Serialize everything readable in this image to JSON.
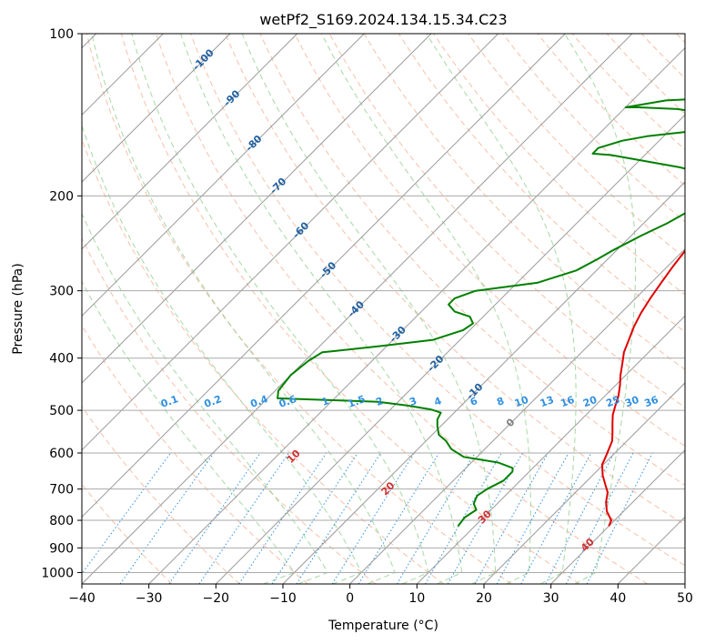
{
  "chart_data": {
    "type": "line",
    "title": "wetPf2_S169.2024.134.15.34.C23",
    "xlabel": "Temperature (°C)",
    "ylabel": "Pressure (hPa)",
    "xlim": [
      -40,
      50
    ],
    "ylim": [
      1050,
      100
    ],
    "y_scale": "log",
    "x_ticks": [
      -40,
      -30,
      -20,
      -10,
      0,
      10,
      20,
      30,
      40,
      50
    ],
    "y_ticks": [
      100,
      200,
      300,
      400,
      500,
      600,
      700,
      800,
      900,
      1000
    ],
    "grid": true,
    "colors": {
      "temperature": "#e00000",
      "dewpoint": "#008000",
      "isotherm": "#9a9a9a",
      "dry_adiabat": "#f4a582",
      "moist_adiabat": "#8fcf8f",
      "mixing_ratio": "#3090e0",
      "isotherm_label": "#2060a0",
      "dry_adiabat_label": "#d03030"
    },
    "series": [
      {
        "name": "Temperature",
        "points": [
          [
            30.0,
            820
          ],
          [
            29.5,
            800
          ],
          [
            27.5,
            770
          ],
          [
            26.0,
            740
          ],
          [
            24.8,
            710
          ],
          [
            23.5,
            690
          ],
          [
            21.5,
            660
          ],
          [
            19.8,
            630
          ],
          [
            19.2,
            610
          ],
          [
            18.5,
            590
          ],
          [
            17.8,
            570
          ],
          [
            16.6,
            550
          ],
          [
            15.3,
            530
          ],
          [
            14.0,
            510
          ],
          [
            13.0,
            490
          ],
          [
            12.0,
            470
          ],
          [
            10.7,
            450
          ],
          [
            9.2,
            430
          ],
          [
            7.8,
            410
          ],
          [
            6.3,
            390
          ],
          [
            5.2,
            370
          ],
          [
            4.0,
            350
          ],
          [
            3.0,
            330
          ],
          [
            2.2,
            310
          ],
          [
            1.5,
            290
          ],
          [
            0.8,
            270
          ],
          [
            0.2,
            250
          ],
          [
            -0.3,
            235
          ],
          [
            -0.3,
            220
          ],
          [
            0.2,
            207
          ],
          [
            1.2,
            197
          ],
          [
            3.0,
            188
          ],
          [
            6.0,
            178
          ],
          [
            9.0,
            168
          ],
          [
            11.5,
            158
          ],
          [
            13.5,
            148
          ],
          [
            14.3,
            140
          ],
          [
            15.5,
            133
          ],
          [
            17.5,
            127
          ],
          [
            18.3,
            122
          ],
          [
            18.7,
            117
          ],
          [
            19.0,
            112
          ],
          [
            19.5,
            108
          ],
          [
            20.0,
            104
          ],
          [
            20.5,
            100
          ]
        ]
      },
      {
        "name": "Dewpoint",
        "points": [
          [
            7.5,
            820
          ],
          [
            7.2,
            790
          ],
          [
            7.8,
            765
          ],
          [
            6.5,
            745
          ],
          [
            5.8,
            720
          ],
          [
            6.3,
            700
          ],
          [
            7.5,
            675
          ],
          [
            7.5,
            650
          ],
          [
            7.0,
            640
          ],
          [
            4.0,
            625
          ],
          [
            -2.0,
            610
          ],
          [
            -5.0,
            590
          ],
          [
            -7.0,
            570
          ],
          [
            -9.0,
            555
          ],
          [
            -10.5,
            535
          ],
          [
            -11.5,
            520
          ],
          [
            -12.0,
            505
          ],
          [
            -14.0,
            498
          ],
          [
            -18.0,
            490
          ],
          [
            -23.0,
            482
          ],
          [
            -32.0,
            478
          ],
          [
            -38.5,
            475
          ],
          [
            -39.5,
            460
          ],
          [
            -40.0,
            430
          ],
          [
            -39.5,
            405
          ],
          [
            -38.7,
            390
          ],
          [
            -37.0,
            388
          ],
          [
            -31.0,
            380
          ],
          [
            -24.0,
            370
          ],
          [
            -21.0,
            355
          ],
          [
            -20.5,
            345
          ],
          [
            -22.0,
            335
          ],
          [
            -25.0,
            328
          ],
          [
            -27.0,
            318
          ],
          [
            -27.0,
            310
          ],
          [
            -25.0,
            300
          ],
          [
            -17.0,
            290
          ],
          [
            -13.0,
            275
          ],
          [
            -11.5,
            262
          ],
          [
            -10.5,
            252
          ],
          [
            -8.5,
            237
          ],
          [
            -6.5,
            225
          ],
          [
            -5.0,
            213
          ],
          [
            -4.8,
            200
          ],
          [
            -5.2,
            190
          ],
          [
            -8.0,
            182
          ],
          [
            -13.0,
            177
          ],
          [
            -25.0,
            168
          ],
          [
            -28.0,
            167
          ],
          [
            -28.0,
            163
          ],
          [
            -25.5,
            158
          ],
          [
            -22.5,
            155
          ],
          [
            -17.0,
            152
          ],
          [
            -14.0,
            148
          ],
          [
            -14.5,
            143
          ],
          [
            -18.0,
            140
          ],
          [
            -22.0,
            138
          ],
          [
            -28.0,
            137
          ],
          [
            -30.0,
            137
          ],
          [
            -25.0,
            133
          ],
          [
            -20.0,
            132
          ],
          [
            -17.0,
            130
          ],
          [
            -15.0,
            128
          ],
          [
            -12.5,
            124
          ],
          [
            -11.0,
            118
          ],
          [
            -10.5,
            112
          ],
          [
            -10.5,
            106
          ],
          [
            -11.0,
            103
          ],
          [
            -12.0,
            100
          ]
        ]
      }
    ],
    "isotherm_labels": [
      {
        "text": "-100",
        "x": -100,
        "p": 112
      },
      {
        "text": "-90",
        "x": -90,
        "p": 132
      },
      {
        "text": "-80",
        "x": -80,
        "p": 160
      },
      {
        "text": "-70",
        "x": -70,
        "p": 192
      },
      {
        "text": "-60",
        "x": -60,
        "p": 232
      },
      {
        "text": "-50",
        "x": -50,
        "p": 275
      },
      {
        "text": "-40",
        "x": -40,
        "p": 325
      },
      {
        "text": "-30",
        "x": -30,
        "p": 362
      },
      {
        "text": "-20",
        "x": -20,
        "p": 410
      },
      {
        "text": "-10",
        "x": -10,
        "p": 462
      },
      {
        "text": "0",
        "x": 0,
        "p": 528
      }
    ],
    "dry_adiabat_labels": [
      {
        "text": "10",
        "theta_c": 10,
        "p": 610
      },
      {
        "text": "20",
        "theta_c": 20,
        "p": 700
      },
      {
        "text": "30",
        "theta_c": 30,
        "p": 790
      },
      {
        "text": "40",
        "theta_c": 40,
        "p": 890
      }
    ],
    "mixing_ratio_labels": [
      "0.1",
      "0.2",
      "0.4",
      "0.6",
      "1",
      "1.5",
      "2",
      "3",
      "4",
      "6",
      "8",
      "10",
      "13",
      "16",
      "20",
      "25",
      "30",
      "36"
    ]
  }
}
